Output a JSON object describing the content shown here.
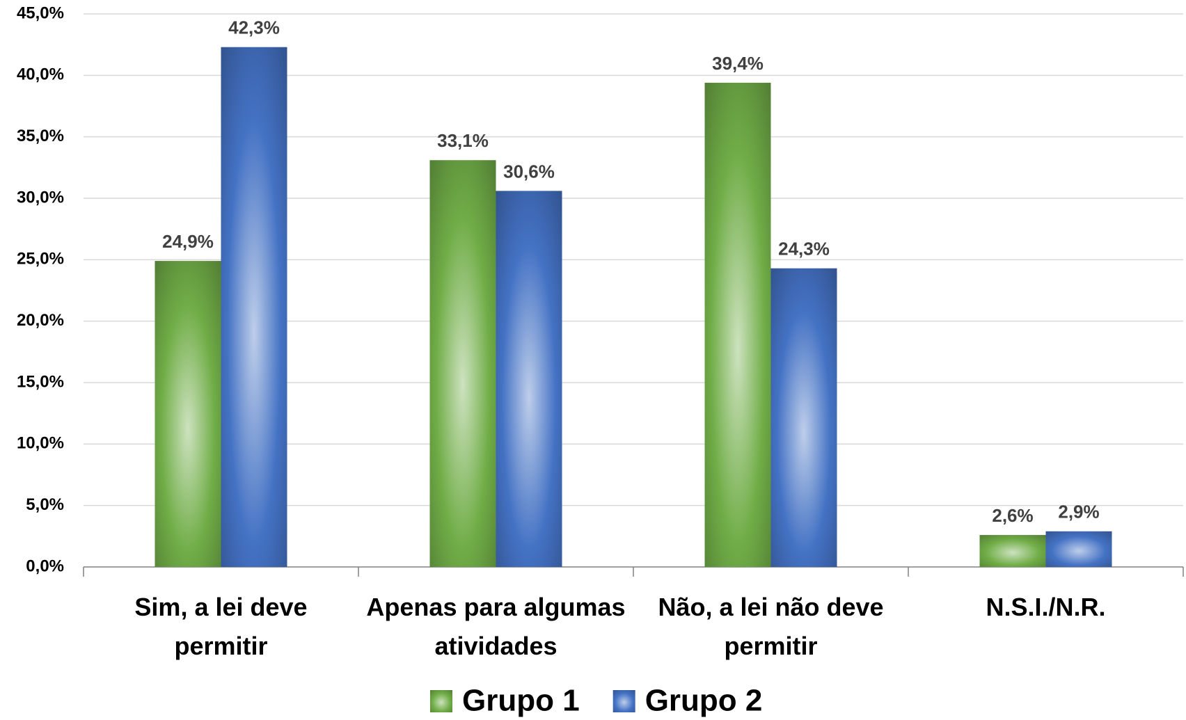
{
  "chart_data": {
    "type": "bar",
    "categories": [
      "Sim, a lei deve permitir",
      "Apenas para algumas atividades",
      "Não, a lei não deve permitir",
      "N.S.I./N.R."
    ],
    "series": [
      {
        "name": "Grupo 1",
        "color": "#70ad47",
        "values": [
          24.9,
          33.1,
          39.4,
          2.6
        ],
        "value_labels": [
          "24,9%",
          "33,1%",
          "39,4%",
          "2,6%"
        ]
      },
      {
        "name": "Grupo 2",
        "color": "#4472c4",
        "values": [
          42.3,
          30.6,
          24.3,
          2.9
        ],
        "value_labels": [
          "42,3%",
          "30,6%",
          "24,3%",
          "2,9%"
        ]
      }
    ],
    "ylim": [
      0,
      45
    ],
    "yticks": [
      {
        "value": 0,
        "label": "0,0%"
      },
      {
        "value": 5,
        "label": "5,0%"
      },
      {
        "value": 10,
        "label": "10,0%"
      },
      {
        "value": 15,
        "label": "15,0%"
      },
      {
        "value": 20,
        "label": "20,0%"
      },
      {
        "value": 25,
        "label": "25,0%"
      },
      {
        "value": 30,
        "label": "30,0%"
      },
      {
        "value": 35,
        "label": "35,0%"
      },
      {
        "value": 40,
        "label": "40,0%"
      },
      {
        "value": 45,
        "label": "45,0%"
      }
    ],
    "grid": true,
    "legend": "bottom"
  }
}
